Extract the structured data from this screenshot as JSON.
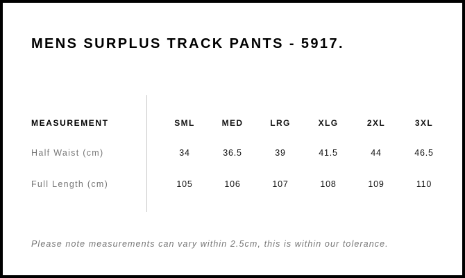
{
  "title": "MENS SURPLUS TRACK PANTS - 5917.",
  "table": {
    "header_label": "MEASUREMENT",
    "sizes": [
      "SML",
      "MED",
      "LRG",
      "XLG",
      "2XL",
      "3XL"
    ],
    "rows": [
      {
        "label": "Half Waist (cm)",
        "values": [
          "34",
          "36.5",
          "39",
          "41.5",
          "44",
          "46.5"
        ]
      },
      {
        "label": "Full Length (cm)",
        "values": [
          "105",
          "106",
          "107",
          "108",
          "109",
          "110"
        ]
      }
    ]
  },
  "note": "Please note measurements can vary within 2.5cm, this is within our tolerance."
}
